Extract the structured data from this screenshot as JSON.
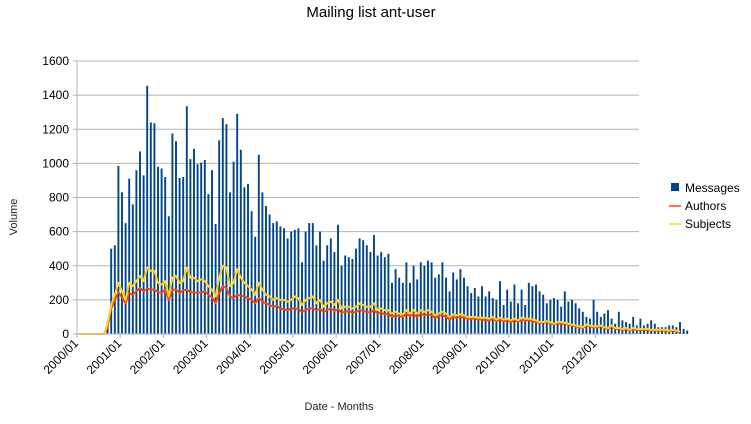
{
  "chart_data": {
    "type": "bar",
    "title": "Mailing list ant-user",
    "xlabel": "Date - Months",
    "ylabel": "Volume",
    "ylim": [
      0,
      1600
    ],
    "yticks": [
      0,
      200,
      400,
      600,
      800,
      1000,
      1200,
      1400,
      1600
    ],
    "xticks": [
      "2000/01",
      "2001/01",
      "2002/01",
      "2003/01",
      "2004/01",
      "2005/01",
      "2006/01",
      "2007/01",
      "2008/01",
      "2009/01",
      "2010/01",
      "2011/01",
      "2012/01"
    ],
    "x_start": "2000/01",
    "grid": "horizontal",
    "legend_position": "right",
    "series": [
      {
        "name": "Messages",
        "type": "bar",
        "color": "#004586",
        "values": [
          0,
          0,
          0,
          0,
          0,
          0,
          0,
          0,
          70,
          500,
          520,
          985,
          830,
          650,
          910,
          760,
          960,
          1070,
          930,
          1455,
          1240,
          1235,
          980,
          970,
          920,
          690,
          1175,
          1130,
          915,
          920,
          1335,
          1025,
          1085,
          995,
          1005,
          1020,
          820,
          960,
          645,
          1135,
          1265,
          1230,
          830,
          1010,
          1290,
          1080,
          860,
          880,
          720,
          570,
          1050,
          830,
          750,
          700,
          650,
          660,
          630,
          620,
          560,
          600,
          610,
          620,
          420,
          600,
          650,
          650,
          520,
          600,
          430,
          520,
          560,
          480,
          640,
          400,
          460,
          450,
          440,
          500,
          560,
          550,
          520,
          480,
          580,
          460,
          480,
          450,
          470,
          300,
          380,
          330,
          300,
          420,
          300,
          400,
          320,
          420,
          400,
          430,
          420,
          330,
          350,
          420,
          330,
          250,
          360,
          320,
          380,
          330,
          280,
          240,
          270,
          220,
          280,
          220,
          250,
          210,
          200,
          310,
          170,
          260,
          190,
          290,
          180,
          260,
          170,
          300,
          280,
          290,
          250,
          230,
          180,
          200,
          210,
          200,
          160,
          250,
          190,
          200,
          180,
          150,
          130,
          100,
          90,
          200,
          130,
          100,
          120,
          140,
          90,
          60,
          130,
          80,
          70,
          60,
          100,
          50,
          90,
          50,
          60,
          80,
          60,
          40,
          40,
          40,
          50,
          50,
          40,
          70,
          30,
          20
        ],
        "note": "read from image, approximate"
      },
      {
        "name": "Authors",
        "type": "line",
        "color": "#ff420e",
        "values": [
          0,
          0,
          0,
          0,
          0,
          0,
          0,
          0,
          40,
          150,
          200,
          245,
          215,
          180,
          240,
          230,
          250,
          270,
          250,
          265,
          260,
          260,
          245,
          240,
          260,
          200,
          260,
          260,
          240,
          255,
          260,
          245,
          245,
          240,
          245,
          250,
          230,
          215,
          180,
          240,
          280,
          270,
          220,
          210,
          230,
          225,
          220,
          210,
          200,
          180,
          210,
          190,
          180,
          170,
          160,
          165,
          150,
          145,
          140,
          150,
          150,
          145,
          130,
          140,
          150,
          150,
          140,
          145,
          130,
          140,
          150,
          135,
          145,
          125,
          130,
          135,
          125,
          130,
          140,
          135,
          130,
          125,
          140,
          120,
          125,
          115,
          120,
          100,
          110,
          105,
          100,
          120,
          105,
          115,
          100,
          120,
          110,
          115,
          110,
          95,
          105,
          110,
          100,
          85,
          100,
          95,
          100,
          95,
          90,
          90,
          90,
          85,
          85,
          80,
          80,
          90,
          75,
          85,
          75,
          80,
          70,
          80,
          70,
          85,
          80,
          80,
          75,
          70,
          65,
          65,
          70,
          65,
          55,
          65,
          60,
          60,
          55,
          50,
          45,
          40,
          35,
          50,
          45,
          40,
          40,
          45,
          35,
          30,
          45,
          30,
          30,
          25,
          30,
          20,
          30,
          25,
          25,
          25,
          25,
          20,
          20,
          20,
          20,
          20,
          15,
          20,
          15,
          10
        ],
        "note": "read from image, approximate"
      },
      {
        "name": "Subjects",
        "type": "line",
        "color": "#ffd320",
        "values": [
          0,
          0,
          0,
          0,
          0,
          0,
          0,
          0,
          60,
          170,
          230,
          300,
          250,
          200,
          300,
          280,
          310,
          340,
          310,
          390,
          370,
          370,
          300,
          290,
          310,
          220,
          330,
          340,
          300,
          310,
          390,
          330,
          330,
          310,
          320,
          310,
          280,
          260,
          220,
          330,
          400,
          390,
          280,
          300,
          380,
          330,
          300,
          280,
          260,
          230,
          300,
          260,
          230,
          220,
          200,
          210,
          200,
          200,
          190,
          200,
          220,
          210,
          170,
          200,
          210,
          220,
          180,
          200,
          160,
          180,
          190,
          170,
          200,
          150,
          160,
          160,
          150,
          160,
          180,
          170,
          160,
          160,
          180,
          140,
          150,
          140,
          140,
          120,
          130,
          120,
          115,
          140,
          120,
          140,
          120,
          140,
          130,
          140,
          130,
          110,
          120,
          130,
          120,
          100,
          115,
          110,
          115,
          110,
          100,
          100,
          100,
          95,
          95,
          95,
          90,
          100,
          85,
          95,
          85,
          90,
          80,
          90,
          80,
          95,
          90,
          90,
          85,
          80,
          70,
          70,
          75,
          70,
          60,
          70,
          70,
          65,
          60,
          55,
          50,
          45,
          40,
          55,
          50,
          45,
          45,
          50,
          40,
          35,
          50,
          35,
          35,
          30,
          35,
          25,
          35,
          30,
          30,
          30,
          30,
          25,
          25,
          25,
          25,
          25,
          20,
          25,
          20,
          15
        ],
        "note": "read from image, approximate"
      }
    ]
  }
}
